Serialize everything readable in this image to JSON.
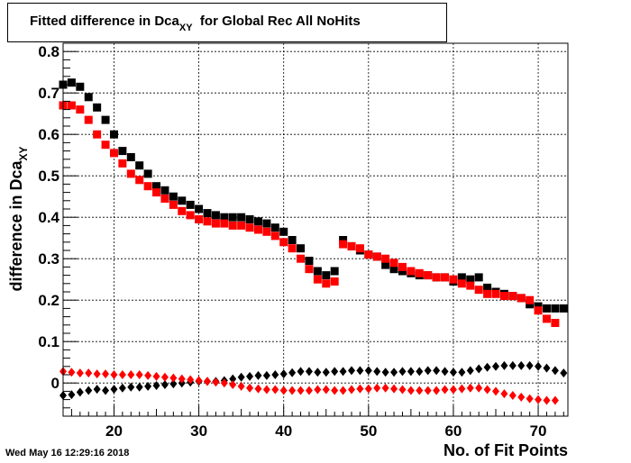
{
  "title": {
    "main": "Fitted difference in Dca",
    "subscript": "XY",
    "rest": "for Global Rec All NoHits"
  },
  "timestamp": "Wed May 16 12:29:16 2018",
  "chart_data": {
    "type": "scatter",
    "title": "Fitted difference in Dca_XY for Global Rec All NoHits",
    "xlabel": "No. of Fit Points",
    "ylabel": {
      "main": "difference in Dca",
      "subscript": "XY"
    },
    "xlim": [
      14,
      73.5
    ],
    "ylim": [
      -0.08,
      0.82
    ],
    "xticks": [
      20,
      30,
      40,
      50,
      60,
      70
    ],
    "yticks": [
      0,
      0.1,
      0.2,
      0.3,
      0.4,
      0.5,
      0.6,
      0.7,
      0.8
    ],
    "ytick_labels": [
      "0",
      "0.1",
      "0.2",
      "0.3",
      "0.4",
      "0.5",
      "0.6",
      "0.7",
      "0.8"
    ],
    "grid": true,
    "series": [
      {
        "color": "#000000",
        "marker": "square",
        "x": [
          14,
          15,
          16,
          17,
          18,
          19,
          20,
          21,
          22,
          23,
          24,
          25,
          26,
          27,
          28,
          29,
          30,
          31,
          32,
          33,
          34,
          35,
          36,
          37,
          38,
          39,
          40,
          41,
          42,
          43,
          44,
          45,
          46,
          47,
          48,
          49,
          50,
          51,
          52,
          53,
          54,
          55,
          56,
          57,
          58,
          59,
          60,
          61,
          62,
          63,
          64,
          65,
          66,
          67,
          68,
          69,
          70,
          71,
          72,
          73
        ],
        "y": [
          0.72,
          0.725,
          0.715,
          0.69,
          0.665,
          0.635,
          0.6,
          0.56,
          0.545,
          0.525,
          0.505,
          0.475,
          0.465,
          0.45,
          0.44,
          0.43,
          0.42,
          0.41,
          0.405,
          0.4,
          0.4,
          0.4,
          0.395,
          0.39,
          0.385,
          0.375,
          0.365,
          0.345,
          0.325,
          0.295,
          0.27,
          0.26,
          0.27,
          0.345,
          0.33,
          0.32,
          0.31,
          0.305,
          0.285,
          0.275,
          0.27,
          0.265,
          0.26,
          0.26,
          0.255,
          0.255,
          0.245,
          0.255,
          0.25,
          0.255,
          0.23,
          0.22,
          0.215,
          0.21,
          0.205,
          0.19,
          0.185,
          0.18,
          0.18,
          0.18
        ]
      },
      {
        "color": "#ff0000",
        "marker": "square",
        "x": [
          14,
          15,
          16,
          17,
          18,
          19,
          20,
          21,
          22,
          23,
          24,
          25,
          26,
          27,
          28,
          29,
          30,
          31,
          32,
          33,
          34,
          35,
          36,
          37,
          38,
          39,
          40,
          41,
          42,
          43,
          44,
          45,
          46,
          47,
          48,
          49,
          50,
          51,
          52,
          53,
          54,
          55,
          56,
          57,
          58,
          59,
          60,
          61,
          62,
          63,
          64,
          65,
          66,
          67,
          68,
          69,
          70,
          71,
          72
        ],
        "y": [
          0.67,
          0.67,
          0.66,
          0.635,
          0.6,
          0.575,
          0.555,
          0.53,
          0.505,
          0.49,
          0.475,
          0.46,
          0.445,
          0.43,
          0.415,
          0.405,
          0.395,
          0.39,
          0.385,
          0.385,
          0.38,
          0.38,
          0.375,
          0.37,
          0.365,
          0.355,
          0.34,
          0.325,
          0.3,
          0.275,
          0.25,
          0.24,
          0.245,
          0.335,
          0.33,
          0.325,
          0.31,
          0.305,
          0.3,
          0.29,
          0.28,
          0.27,
          0.265,
          0.26,
          0.255,
          0.255,
          0.25,
          0.24,
          0.235,
          0.225,
          0.215,
          0.215,
          0.21,
          0.21,
          0.205,
          0.2,
          0.175,
          0.155,
          0.145
        ]
      },
      {
        "color": "#000000",
        "marker": "diamond",
        "x": [
          14,
          15,
          16,
          17,
          18,
          19,
          20,
          21,
          22,
          23,
          24,
          25,
          26,
          27,
          28,
          29,
          30,
          31,
          32,
          33,
          34,
          35,
          36,
          37,
          38,
          39,
          40,
          41,
          42,
          43,
          44,
          45,
          46,
          47,
          48,
          49,
          50,
          51,
          52,
          53,
          54,
          55,
          56,
          57,
          58,
          59,
          60,
          61,
          62,
          63,
          64,
          65,
          66,
          67,
          68,
          69,
          70,
          71,
          72,
          73
        ],
        "y": [
          -0.03,
          -0.028,
          -0.022,
          -0.018,
          -0.015,
          -0.018,
          -0.015,
          -0.012,
          -0.01,
          -0.01,
          -0.008,
          -0.006,
          -0.004,
          -0.002,
          0,
          0.002,
          0.004,
          0.004,
          0.004,
          0.006,
          0.01,
          0.014,
          0.016,
          0.018,
          0.018,
          0.02,
          0.022,
          0.025,
          0.028,
          0.028,
          0.026,
          0.026,
          0.028,
          0.028,
          0.03,
          0.03,
          0.03,
          0.028,
          0.026,
          0.026,
          0.028,
          0.028,
          0.028,
          0.03,
          0.03,
          0.028,
          0.026,
          0.026,
          0.03,
          0.034,
          0.038,
          0.04,
          0.042,
          0.042,
          0.042,
          0.042,
          0.04,
          0.036,
          0.03,
          0.024
        ]
      },
      {
        "color": "#ff0000",
        "marker": "diamond",
        "x": [
          14,
          15,
          16,
          17,
          18,
          19,
          20,
          21,
          22,
          23,
          24,
          25,
          26,
          27,
          28,
          29,
          30,
          31,
          32,
          33,
          34,
          35,
          36,
          37,
          38,
          39,
          40,
          41,
          42,
          43,
          44,
          45,
          46,
          47,
          48,
          49,
          50,
          51,
          52,
          53,
          54,
          55,
          56,
          57,
          58,
          59,
          60,
          61,
          62,
          63,
          64,
          65,
          66,
          67,
          68,
          69,
          70,
          71,
          72
        ],
        "y": [
          0.028,
          0.026,
          0.024,
          0.024,
          0.022,
          0.022,
          0.02,
          0.02,
          0.02,
          0.02,
          0.018,
          0.016,
          0.014,
          0.012,
          0.01,
          0.008,
          0.006,
          0.004,
          0.002,
          0,
          -0.004,
          -0.008,
          -0.012,
          -0.014,
          -0.016,
          -0.016,
          -0.018,
          -0.018,
          -0.018,
          -0.018,
          -0.016,
          -0.016,
          -0.018,
          -0.018,
          -0.016,
          -0.014,
          -0.014,
          -0.012,
          -0.012,
          -0.014,
          -0.016,
          -0.018,
          -0.018,
          -0.018,
          -0.018,
          -0.016,
          -0.016,
          -0.014,
          -0.012,
          -0.012,
          -0.016,
          -0.02,
          -0.026,
          -0.03,
          -0.034,
          -0.038,
          -0.04,
          -0.042,
          -0.042
        ]
      }
    ]
  }
}
